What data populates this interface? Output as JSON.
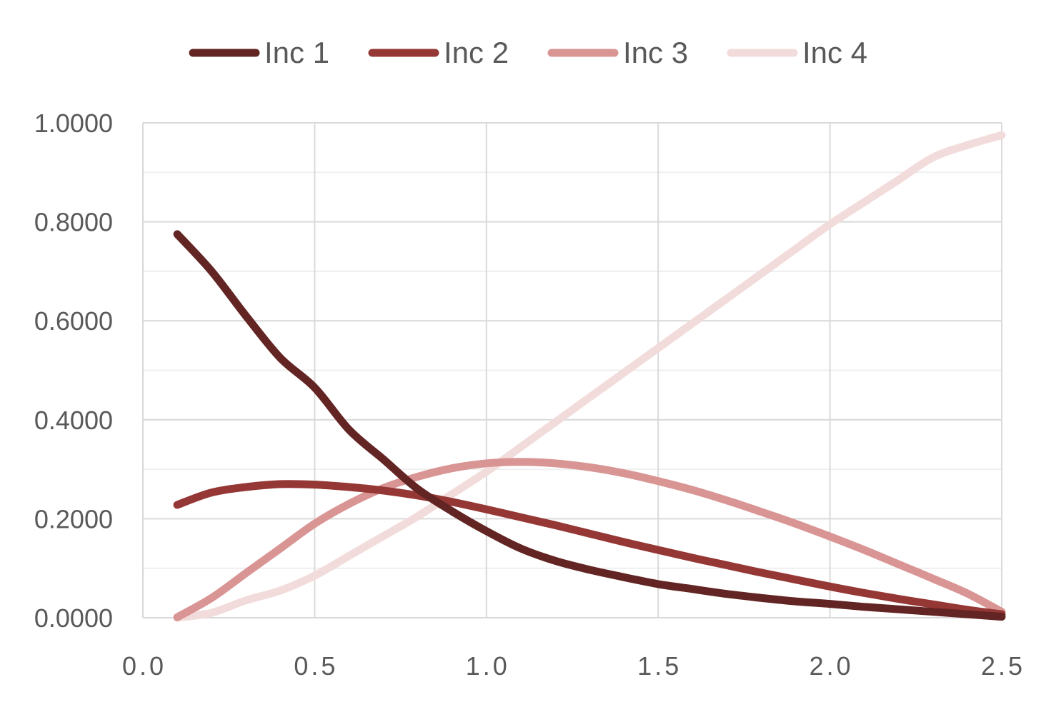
{
  "chart_data": {
    "type": "line",
    "title": "",
    "xlabel": "",
    "ylabel": "",
    "xlim": [
      0.0,
      2.5
    ],
    "ylim": [
      0.0,
      1.0
    ],
    "x_ticks": [
      "0.0",
      "0.5",
      "1.0",
      "1.5",
      "2.0",
      "2.5"
    ],
    "y_ticks": [
      "0.0000",
      "0.2000",
      "0.4000",
      "0.6000",
      "0.8000",
      "1.0000"
    ],
    "grid": "major and minor horizontal, major vertical",
    "legend_position": "top",
    "x": [
      0.1,
      0.2,
      0.3,
      0.4,
      0.5,
      0.6,
      0.7,
      0.8,
      0.9,
      1.0,
      1.1,
      1.2,
      1.3,
      1.4,
      1.5,
      1.6,
      1.7,
      1.8,
      1.9,
      2.0,
      2.1,
      2.2,
      2.3,
      2.4,
      2.5
    ],
    "series": [
      {
        "name": "Inc 1",
        "color": "#632523",
        "values": [
          0.775,
          0.7,
          0.61,
          0.525,
          0.465,
          0.38,
          0.32,
          0.26,
          0.215,
          0.175,
          0.14,
          0.115,
          0.097,
          0.082,
          0.068,
          0.058,
          0.048,
          0.04,
          0.033,
          0.028,
          0.022,
          0.017,
          0.012,
          0.007,
          0.002
        ]
      },
      {
        "name": "Inc 2",
        "color": "#953735",
        "values": [
          0.228,
          0.253,
          0.264,
          0.27,
          0.269,
          0.264,
          0.257,
          0.247,
          0.234,
          0.219,
          0.203,
          0.187,
          0.17,
          0.153,
          0.137,
          0.121,
          0.106,
          0.091,
          0.077,
          0.063,
          0.05,
          0.038,
          0.027,
          0.016,
          0.007
        ]
      },
      {
        "name": "Inc 3",
        "color": "#D99594",
        "values": [
          0.001,
          0.04,
          0.09,
          0.14,
          0.19,
          0.23,
          0.262,
          0.285,
          0.302,
          0.312,
          0.315,
          0.312,
          0.304,
          0.292,
          0.276,
          0.258,
          0.237,
          0.214,
          0.19,
          0.164,
          0.137,
          0.108,
          0.079,
          0.049,
          0.012
        ]
      },
      {
        "name": "Inc 4",
        "color": "#F2DCDB",
        "values": [
          0.0,
          0.01,
          0.035,
          0.055,
          0.085,
          0.125,
          0.165,
          0.205,
          0.25,
          0.295,
          0.345,
          0.395,
          0.445,
          0.495,
          0.545,
          0.595,
          0.645,
          0.695,
          0.745,
          0.795,
          0.84,
          0.885,
          0.93,
          0.955,
          0.975
        ]
      }
    ]
  }
}
